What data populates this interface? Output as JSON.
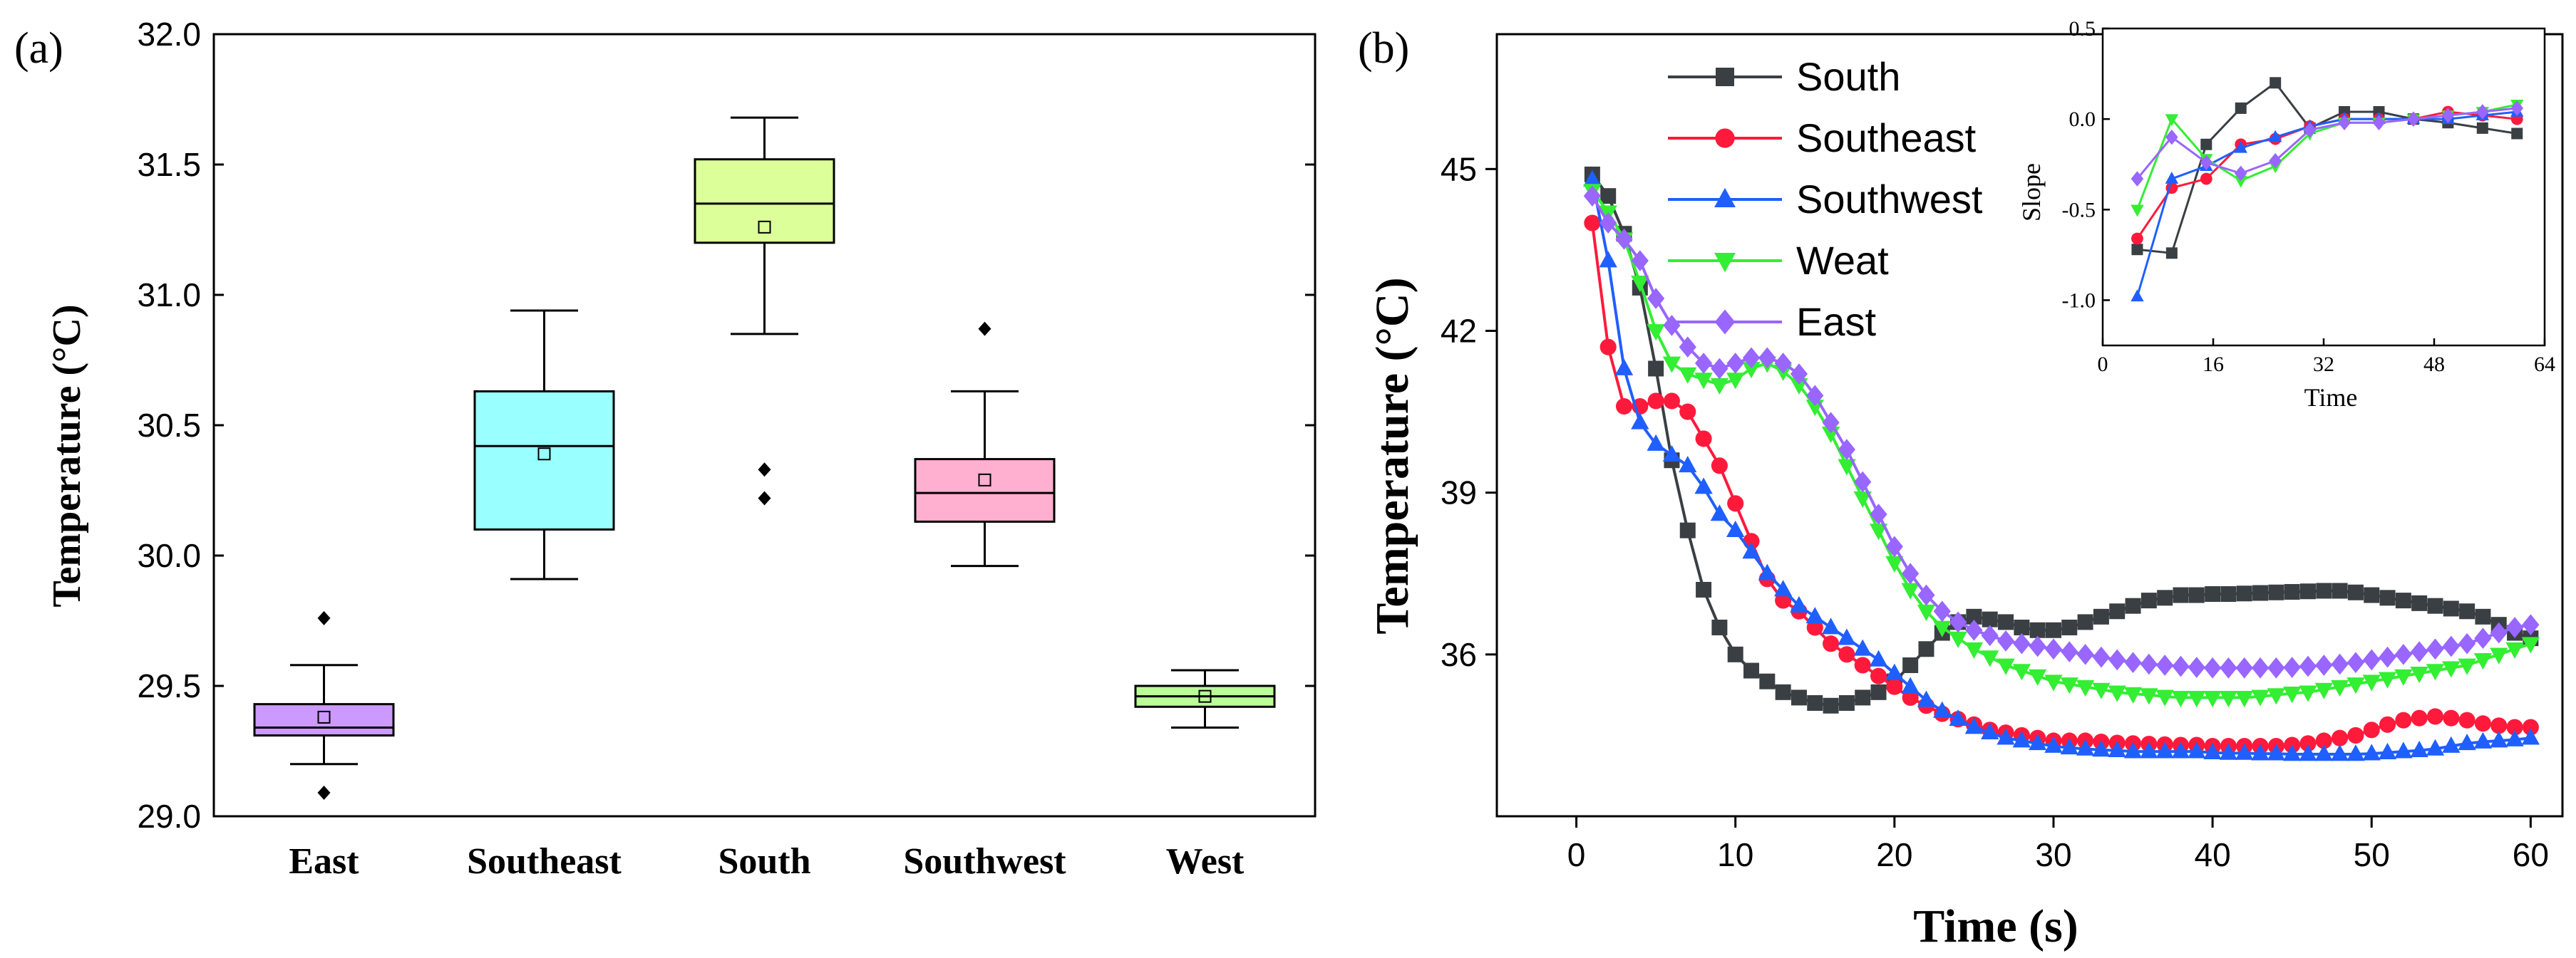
{
  "chart_data": [
    {
      "type": "box",
      "panel_label": "(a)",
      "ylabel": "Temperature (°C)",
      "ylim": [
        29.0,
        32.0
      ],
      "yticks": [
        "29.0",
        "29.5",
        "30.0",
        "30.5",
        "31.0",
        "31.5",
        "32.0"
      ],
      "categories": [
        "East",
        "Southeast",
        "South",
        "Southwest",
        "West"
      ],
      "boxes": [
        {
          "name": "East",
          "color": "#cc99ff",
          "q1": 29.31,
          "median": 29.34,
          "q3": 29.43,
          "whisker_low": 29.2,
          "whisker_high": 29.58,
          "mean": 29.38,
          "outliers": [
            29.76,
            29.09
          ]
        },
        {
          "name": "Southeast",
          "color": "#99ffff",
          "q1": 30.1,
          "median": 30.42,
          "q3": 30.63,
          "whisker_low": 29.91,
          "whisker_high": 30.94,
          "mean": 30.39,
          "outliers": []
        },
        {
          "name": "South",
          "color": "#ddff99",
          "q1": 31.2,
          "median": 31.35,
          "q3": 31.52,
          "whisker_low": 30.85,
          "whisker_high": 31.68,
          "mean": 31.26,
          "outliers": [
            30.33,
            30.22
          ]
        },
        {
          "name": "Southwest",
          "color": "#ffb0d0",
          "q1": 30.13,
          "median": 30.24,
          "q3": 30.37,
          "whisker_low": 29.96,
          "whisker_high": 30.63,
          "mean": 30.29,
          "outliers": [
            30.87
          ]
        },
        {
          "name": "West",
          "color": "#bbff99",
          "q1": 29.42,
          "median": 29.46,
          "q3": 29.5,
          "whisker_low": 29.34,
          "whisker_high": 29.56,
          "mean": 29.46,
          "outliers": []
        }
      ]
    },
    {
      "type": "line",
      "panel_label": "(b)",
      "xlabel": "Time (s)",
      "ylabel": "Temperature (°C)",
      "xlim": [
        -5,
        62
      ],
      "ylim": [
        33,
        47.5
      ],
      "xticks": [
        "0",
        "10",
        "20",
        "30",
        "40",
        "50",
        "60"
      ],
      "yticks": [
        "36",
        "39",
        "42",
        "45"
      ],
      "x": [
        1,
        2,
        3,
        4,
        5,
        6,
        7,
        8,
        9,
        10,
        11,
        12,
        13,
        14,
        15,
        16,
        17,
        18,
        19,
        20,
        21,
        22,
        23,
        24,
        25,
        26,
        27,
        28,
        29,
        30,
        31,
        32,
        33,
        34,
        35,
        36,
        37,
        38,
        39,
        40,
        41,
        42,
        43,
        44,
        45,
        46,
        47,
        48,
        49,
        50,
        51,
        52,
        53,
        54,
        55,
        56,
        57,
        58,
        59,
        60
      ],
      "series": [
        {
          "name": "South",
          "color": "#3a3f44",
          "marker": "square",
          "values": [
            44.9,
            44.5,
            43.8,
            42.8,
            41.3,
            39.6,
            38.3,
            37.2,
            36.5,
            36.0,
            35.7,
            35.5,
            35.3,
            35.2,
            35.1,
            35.05,
            35.1,
            35.2,
            35.3,
            35.5,
            35.8,
            36.1,
            36.4,
            36.6,
            36.7,
            36.65,
            36.6,
            36.5,
            36.45,
            36.45,
            36.5,
            36.6,
            36.7,
            36.8,
            36.9,
            37.0,
            37.05,
            37.1,
            37.1,
            37.12,
            37.12,
            37.13,
            37.14,
            37.15,
            37.16,
            37.17,
            37.18,
            37.18,
            37.15,
            37.1,
            37.05,
            37.0,
            36.95,
            36.9,
            36.85,
            36.8,
            36.7,
            36.55,
            36.4,
            36.3
          ]
        },
        {
          "name": "Southeast",
          "color": "#ff1a3c",
          "marker": "circle",
          "values": [
            44.0,
            41.7,
            40.6,
            40.6,
            40.7,
            40.7,
            40.5,
            40.0,
            39.5,
            38.8,
            38.1,
            37.4,
            37.0,
            36.8,
            36.5,
            36.2,
            36.0,
            35.8,
            35.6,
            35.4,
            35.2,
            35.05,
            34.9,
            34.8,
            34.7,
            34.6,
            34.55,
            34.5,
            34.45,
            34.4,
            34.4,
            34.4,
            34.38,
            34.36,
            34.35,
            34.34,
            34.33,
            34.32,
            34.32,
            34.3,
            34.3,
            34.3,
            34.3,
            34.3,
            34.32,
            34.35,
            34.4,
            34.45,
            34.5,
            34.6,
            34.7,
            34.78,
            34.82,
            34.85,
            34.82,
            34.78,
            34.72,
            34.68,
            34.65,
            34.65
          ]
        },
        {
          "name": "Southwest",
          "color": "#1f5fff",
          "marker": "triangle",
          "values": [
            44.8,
            43.3,
            41.3,
            40.3,
            39.9,
            39.7,
            39.5,
            39.1,
            38.6,
            38.3,
            37.9,
            37.5,
            37.2,
            36.9,
            36.7,
            36.5,
            36.3,
            36.1,
            35.9,
            35.65,
            35.4,
            35.15,
            34.95,
            34.8,
            34.65,
            34.55,
            34.45,
            34.4,
            34.35,
            34.3,
            34.27,
            34.25,
            34.23,
            34.22,
            34.2,
            34.2,
            34.2,
            34.2,
            34.2,
            34.18,
            34.17,
            34.17,
            34.16,
            34.16,
            34.15,
            34.15,
            34.15,
            34.15,
            34.15,
            34.16,
            34.18,
            34.2,
            34.22,
            34.25,
            34.3,
            34.35,
            34.38,
            34.4,
            34.42,
            34.45
          ]
        },
        {
          "name": "Weat",
          "color": "#33ee33",
          "marker": "triangle-down",
          "values": [
            44.6,
            44.2,
            43.7,
            42.9,
            42.0,
            41.4,
            41.2,
            41.1,
            41.0,
            41.1,
            41.3,
            41.4,
            41.25,
            41.0,
            40.6,
            40.1,
            39.5,
            38.9,
            38.3,
            37.7,
            37.2,
            36.8,
            36.5,
            36.3,
            36.1,
            35.95,
            35.8,
            35.7,
            35.6,
            35.5,
            35.45,
            35.4,
            35.35,
            35.3,
            35.27,
            35.25,
            35.22,
            35.2,
            35.2,
            35.2,
            35.2,
            35.2,
            35.22,
            35.25,
            35.28,
            35.3,
            35.35,
            35.4,
            35.45,
            35.5,
            35.55,
            35.6,
            35.65,
            35.7,
            35.75,
            35.8,
            35.9,
            36.0,
            36.1,
            36.2
          ]
        },
        {
          "name": "East",
          "color": "#9966ff",
          "marker": "diamond",
          "values": [
            44.5,
            44.0,
            43.7,
            43.3,
            42.6,
            42.1,
            41.7,
            41.4,
            41.3,
            41.4,
            41.5,
            41.5,
            41.4,
            41.2,
            40.8,
            40.3,
            39.8,
            39.2,
            38.6,
            38.0,
            37.5,
            37.1,
            36.8,
            36.6,
            36.45,
            36.35,
            36.25,
            36.2,
            36.15,
            36.1,
            36.05,
            36.0,
            35.95,
            35.9,
            35.85,
            35.82,
            35.8,
            35.78,
            35.76,
            35.75,
            35.75,
            35.75,
            35.75,
            35.75,
            35.76,
            35.78,
            35.8,
            35.82,
            35.85,
            35.9,
            35.95,
            36.0,
            36.05,
            36.1,
            36.15,
            36.2,
            36.3,
            36.4,
            36.5,
            36.55
          ]
        }
      ],
      "legend": [
        "South",
        "Southeast",
        "Southwest",
        "Weat",
        "East"
      ]
    },
    {
      "type": "line",
      "role": "inset",
      "xlabel": "Time",
      "ylabel": "Slope",
      "xlim": [
        0,
        64
      ],
      "ylim": [
        -1.25,
        0.5
      ],
      "xticks": [
        "0",
        "16",
        "32",
        "48",
        "64"
      ],
      "yticks": [
        "-1.0",
        "-0.5",
        "0.0",
        "0.5"
      ],
      "x": [
        5,
        10,
        15,
        20,
        25,
        30,
        35,
        40,
        45,
        50,
        55,
        60
      ],
      "series": [
        {
          "name": "South",
          "color": "#3a3f44",
          "marker": "square",
          "values": [
            -0.72,
            -0.74,
            -0.14,
            0.06,
            0.2,
            -0.05,
            0.04,
            0.04,
            0.0,
            -0.02,
            -0.05,
            -0.08
          ]
        },
        {
          "name": "Southeast",
          "color": "#ff1a3c",
          "marker": "circle",
          "values": [
            -0.66,
            -0.38,
            -0.33,
            -0.14,
            -0.11,
            -0.04,
            0.0,
            0.0,
            0.0,
            0.04,
            0.02,
            0.0
          ]
        },
        {
          "name": "Southwest",
          "color": "#1f5fff",
          "marker": "triangle",
          "values": [
            -0.98,
            -0.33,
            -0.26,
            -0.16,
            -0.1,
            -0.04,
            0.0,
            0.0,
            0.0,
            0.0,
            0.02,
            0.04
          ]
        },
        {
          "name": "Weat",
          "color": "#33ee33",
          "marker": "triangle-down",
          "values": [
            -0.5,
            0.0,
            -0.22,
            -0.34,
            -0.26,
            -0.08,
            -0.02,
            -0.02,
            0.0,
            0.02,
            0.04,
            0.08
          ]
        },
        {
          "name": "East",
          "color": "#9966ff",
          "marker": "diamond",
          "values": [
            -0.33,
            -0.1,
            -0.24,
            -0.3,
            -0.23,
            -0.06,
            -0.02,
            -0.02,
            0.0,
            0.02,
            0.04,
            0.06
          ]
        }
      ]
    }
  ]
}
